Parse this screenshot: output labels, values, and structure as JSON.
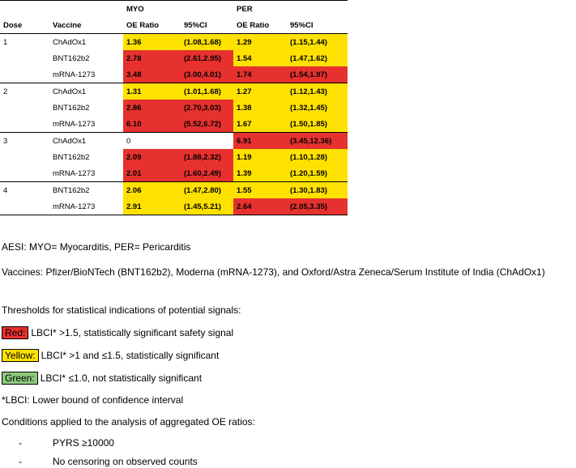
{
  "table": {
    "group_headers": {
      "myo": "MYO",
      "per": "PER"
    },
    "columns": {
      "dose": "Dose",
      "vaccine": "Vaccine",
      "myo_oe": "OE Ratio",
      "myo_ci": "95%CI",
      "per_oe": "OE Ratio",
      "per_ci": "95%CI"
    },
    "colors": {
      "red": "#e6312f",
      "yellow": "#ffe100",
      "green": "#8cc97e",
      "none": "#ffffff"
    },
    "groups": [
      {
        "dose": "1",
        "rows": [
          {
            "vaccine": "ChAdOx1",
            "myo_oe": "1.36",
            "myo_ci": "(1.08,1.68)",
            "myo_color": "yellow",
            "per_oe": "1.29",
            "per_ci": "(1.15,1.44)",
            "per_color": "yellow"
          },
          {
            "vaccine": "BNT162b2",
            "myo_oe": "2.78",
            "myo_ci": "(2.61,2.95)",
            "myo_color": "red",
            "per_oe": "1.54",
            "per_ci": "(1.47,1.62)",
            "per_color": "yellow"
          },
          {
            "vaccine": "mRNA-1273",
            "myo_oe": "3.48",
            "myo_ci": "(3.00,4.01)",
            "myo_color": "red",
            "per_oe": "1.74",
            "per_ci": "(1.54,1.97)",
            "per_color": "red"
          }
        ]
      },
      {
        "dose": "2",
        "rows": [
          {
            "vaccine": "ChAdOx1",
            "myo_oe": "1.31",
            "myo_ci": "(1.01,1.68)",
            "myo_color": "yellow",
            "per_oe": "1.27",
            "per_ci": "(1.12,1.43)",
            "per_color": "yellow"
          },
          {
            "vaccine": "BNT162b2",
            "myo_oe": "2.86",
            "myo_ci": "(2.70,3.03)",
            "myo_color": "red",
            "per_oe": "1.38",
            "per_ci": "(1.32,1.45)",
            "per_color": "yellow"
          },
          {
            "vaccine": "mRNA-1273",
            "myo_oe": "6.10",
            "myo_ci": "(5.52,6.72)",
            "myo_color": "red",
            "per_oe": "1.67",
            "per_ci": "(1.50,1.85)",
            "per_color": "yellow"
          }
        ]
      },
      {
        "dose": "3",
        "rows": [
          {
            "vaccine": "ChAdOx1",
            "myo_oe": "0",
            "myo_ci": "",
            "myo_color": "none",
            "per_oe": "6.91",
            "per_ci": "(3.45,12.36)",
            "per_color": "red"
          },
          {
            "vaccine": "BNT162b2",
            "myo_oe": "2.09",
            "myo_ci": "(1.88,2.32)",
            "myo_color": "red",
            "per_oe": "1.19",
            "per_ci": "(1.10,1.28)",
            "per_color": "yellow"
          },
          {
            "vaccine": "mRNA-1273",
            "myo_oe": "2.01",
            "myo_ci": "(1.60,2.49)",
            "myo_color": "red",
            "per_oe": "1.39",
            "per_ci": "(1.20,1.59)",
            "per_color": "yellow"
          }
        ]
      },
      {
        "dose": "4",
        "rows": [
          {
            "vaccine": "BNT162b2",
            "myo_oe": "2.06",
            "myo_ci": "(1.47,2.80)",
            "myo_color": "yellow",
            "per_oe": "1.55",
            "per_ci": "(1.30,1.83)",
            "per_color": "yellow"
          },
          {
            "vaccine": "mRNA-1273",
            "myo_oe": "2.91",
            "myo_ci": "(1.45,5.21)",
            "myo_color": "yellow",
            "per_oe": "2.64",
            "per_ci": "(2.05,3.35)",
            "per_color": "red"
          }
        ]
      }
    ]
  },
  "notes": {
    "aesi": "AESI: MYO= Myocarditis, PER= Pericarditis",
    "vaccines": "Vaccines: Pfizer/BioNTech (BNT162b2), Moderna (mRNA-1273), and Oxford/Astra Zeneca/Serum Institute of India (ChAdOx1)",
    "thresholds_title": "Thresholds for statistical indications of potential signals:",
    "red_label": "Red:",
    "red_text": "LBCI* >1.5, statistically significant safety signal",
    "yellow_label": "Yellow:",
    "yellow_text": "LBCI* >1 and ≤1.5, statistically significant",
    "green_label": "Green:",
    "green_text": "LBCI* ≤1.0, not statistically significant",
    "lbci_def": "*LBCI: Lower bound of confidence interval",
    "conditions_title": "Conditions applied to the analysis of aggregated OE ratios:",
    "bullet_marker": "-",
    "conditions": [
      "PYRS ≥10000",
      "No censoring on observed counts"
    ]
  }
}
